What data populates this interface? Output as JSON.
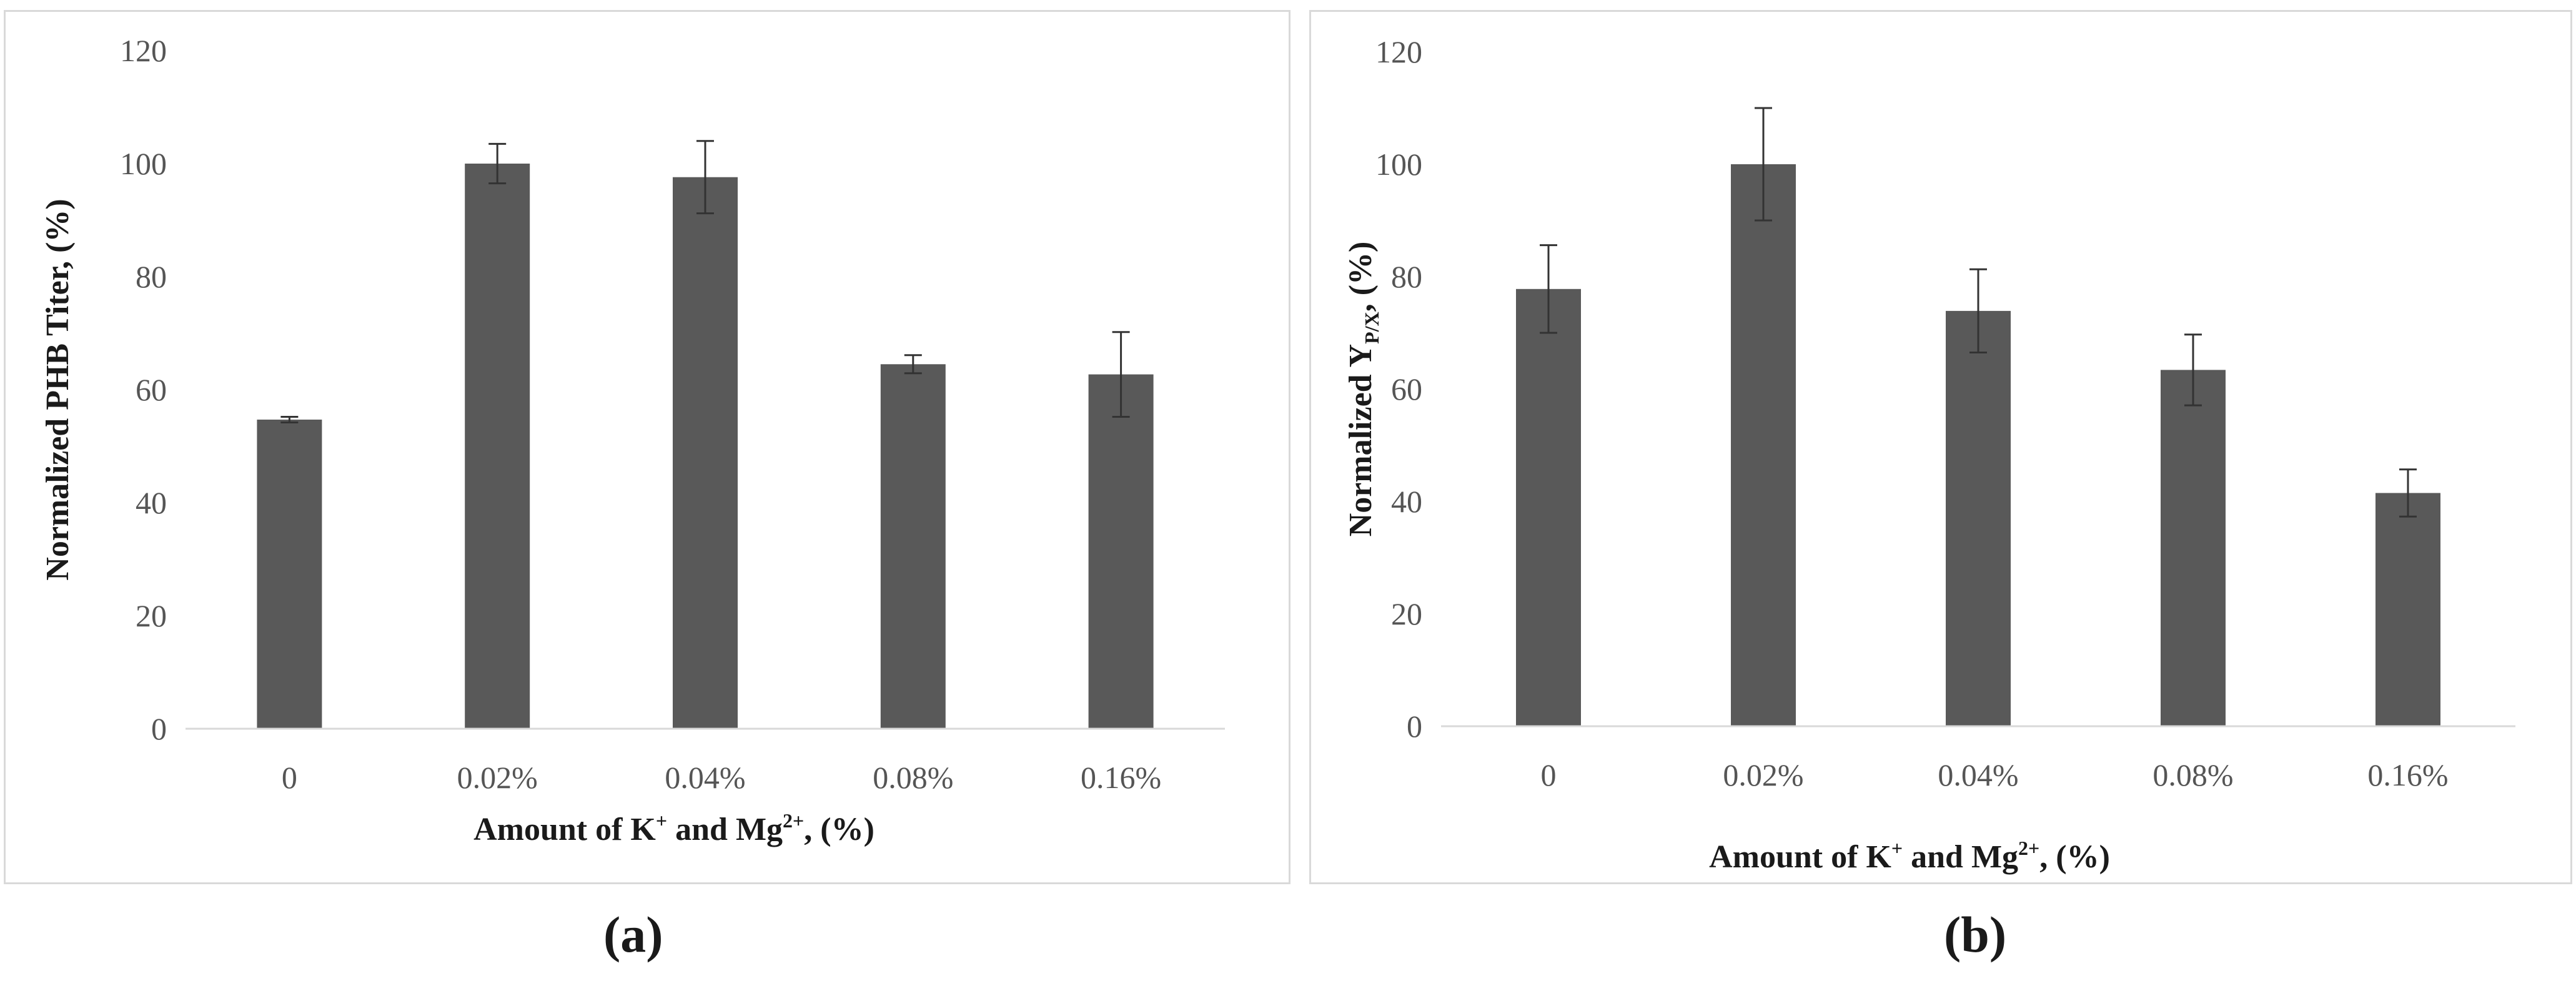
{
  "chart_data": [
    {
      "type": "bar",
      "title": "",
      "panel_label": "(a)",
      "categories": [
        "0",
        "0.02%",
        "0.04%",
        "0.08%",
        "0.16%"
      ],
      "values": [
        54.7,
        100,
        97.6,
        64.5,
        62.7
      ],
      "errors": [
        0.5,
        3.5,
        6.4,
        1.6,
        7.5
      ],
      "xlabel": {
        "main": "Amount of K",
        "sup1": "+",
        "mid": " and Mg",
        "sup2": "2+",
        "tail": ", (%)"
      },
      "ylabel": {
        "main": "Normalized PHB Titer, (%)"
      },
      "ylim": [
        0,
        120
      ],
      "yticks": [
        "0",
        "20",
        "40",
        "60",
        "80",
        "100",
        "120"
      ],
      "bar_color": "#595959",
      "grid": false
    },
    {
      "type": "bar",
      "title": "",
      "panel_label": "(b)",
      "categories": [
        "0",
        "0.02%",
        "0.04%",
        "0.08%",
        "0.16%"
      ],
      "values": [
        77.8,
        100,
        73.9,
        63.4,
        41.5
      ],
      "errors": [
        7.8,
        10,
        7.4,
        6.3,
        4.2
      ],
      "xlabel": {
        "main": "Amount of K",
        "sup1": "+",
        "mid": " and Mg",
        "sup2": "2+",
        "tail": ", (%)"
      },
      "ylabel": {
        "main": "Normalized Y",
        "sub": "P/X",
        "tail": ", (%)"
      },
      "ylim": [
        0,
        120
      ],
      "yticks": [
        "0",
        "20",
        "40",
        "60",
        "80",
        "100",
        "120"
      ],
      "bar_color": "#595959",
      "grid": false
    }
  ]
}
